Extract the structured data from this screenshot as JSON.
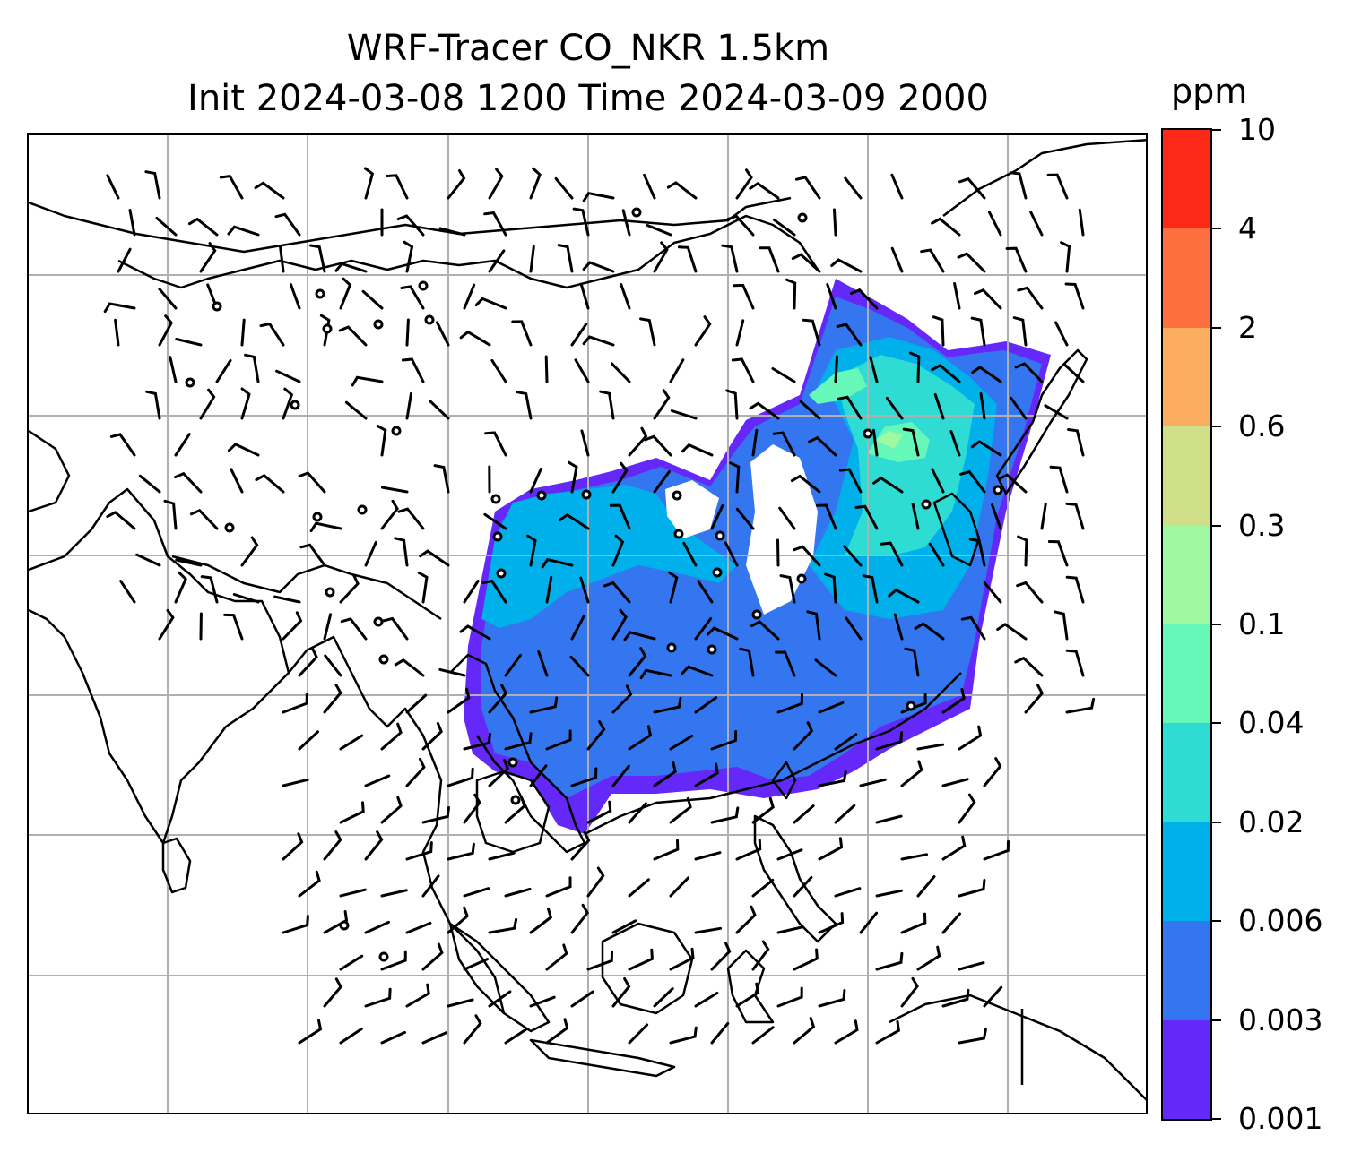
{
  "title": {
    "line1": "WRF-Tracer CO_NKR 1.5km",
    "line2": "Init 2024-03-08 1200 Time 2024-03-09 2000"
  },
  "colorbar": {
    "unit": "ppm",
    "levels": [
      "0.001",
      "0.003",
      "0.006",
      "0.02",
      "0.04",
      "0.1",
      "0.3",
      "0.6",
      "2",
      "4",
      "10"
    ],
    "colors": [
      "#6428f8",
      "#3476f0",
      "#00b0ea",
      "#2edcd4",
      "#66f8b8",
      "#a0f8a0",
      "#d0e088",
      "#fcae60",
      "#fc7040",
      "#fc2818"
    ]
  },
  "map": {
    "gridlines": true,
    "plume_levels_present": [
      "0.001",
      "0.003",
      "0.006",
      "0.02",
      "0.04",
      "0.1"
    ],
    "calm_wind_markers": true
  }
}
